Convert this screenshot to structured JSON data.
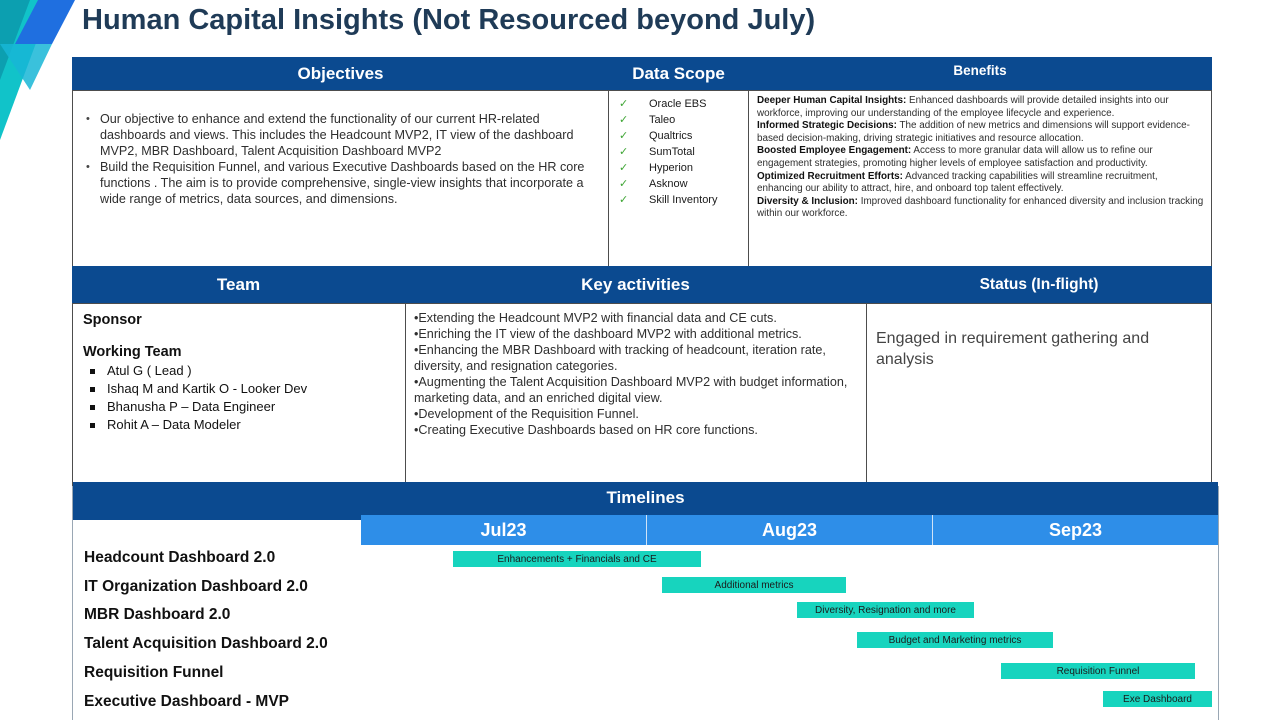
{
  "title": "Human Capital Insights (Not Resourced beyond July)",
  "objectives": {
    "header": "Objectives",
    "items": [
      "Our objective to enhance and extend the functionality of our current HR-related dashboards and views. This includes the Headcount MVP2, IT view of the dashboard MVP2, MBR Dashboard, Talent Acquisition Dashboard MVP2",
      "Build the Requisition Funnel, and various Executive Dashboards based on the HR core functions . The aim is to provide comprehensive, single-view insights that incorporate a wide range of metrics, data sources, and dimensions."
    ]
  },
  "data_scope": {
    "header": "Data Scope",
    "items": [
      "Oracle EBS",
      "Taleo",
      "Qualtrics",
      "SumTotal",
      "Hyperion",
      "Asknow",
      "Skill Inventory"
    ]
  },
  "benefits": {
    "header": "Benefits",
    "items": [
      {
        "title": "Deeper Human Capital Insights:",
        "text": " Enhanced dashboards will provide detailed insights into our workforce, improving our understanding of the employee lifecycle and experience."
      },
      {
        "title": "Informed Strategic Decisions:",
        "text": " The addition of new metrics and dimensions will support evidence-based decision-making, driving strategic initiatives and resource allocation."
      },
      {
        "title": "Boosted Employee Engagement:",
        "text": " Access to more granular data will allow us to refine our engagement strategies, promoting higher levels of employee satisfaction and productivity."
      },
      {
        "title": "Optimized Recruitment Efforts:",
        "text": " Advanced tracking capabilities will streamline recruitment, enhancing our ability to attract, hire, and onboard top talent effectively."
      },
      {
        "title": "Diversity & Inclusion:",
        "text": " Improved dashboard functionality for enhanced diversity and inclusion tracking within our workforce."
      }
    ]
  },
  "team": {
    "header": "Team",
    "sponsor_label": "Sponsor",
    "working_team_label": "Working Team",
    "members": [
      "Atul G ( Lead )",
      "Ishaq M and Kartik O - Looker Dev",
      "Bhanusha P – Data Engineer",
      "Rohit A – Data Modeler"
    ]
  },
  "key_activities": {
    "header": "Key activities",
    "items": [
      "•Extending the Headcount MVP2 with financial data and CE cuts.",
      "•Enriching the IT view of the dashboard MVP2 with additional metrics.",
      "•Enhancing the MBR Dashboard with tracking of headcount, iteration rate, diversity, and resignation categories.",
      "•Augmenting the Talent Acquisition Dashboard MVP2 with budget information, marketing data, and an enriched  digital view.",
      "•Development of the Requisition Funnel.",
      "•Creating Executive Dashboards based on HR core functions."
    ]
  },
  "status": {
    "header": "Status (In-flight)",
    "text": "Engaged in requirement gathering and analysis"
  },
  "timelines": {
    "header": "Timelines",
    "months": [
      "Jul23",
      "Aug23",
      "Sep23"
    ],
    "rows": [
      {
        "label": "Headcount Dashboard 2.0",
        "bar": "Enhancements + Financials and CE"
      },
      {
        "label": "IT Organization Dashboard 2.0",
        "bar": "Additional metrics"
      },
      {
        "label": "MBR Dashboard 2.0",
        "bar": "Diversity, Resignation and more"
      },
      {
        "label": "Talent Acquisition Dashboard 2.0",
        "bar": "Budget and Marketing metrics"
      },
      {
        "label": "Requisition Funnel",
        "bar": "Requisition Funnel"
      },
      {
        "label": "Executive Dashboard - MVP",
        "bar": "Exe Dashboard"
      }
    ]
  },
  "colors": {
    "header_blue": "#0b4a90",
    "month_blue": "#2e8ee8",
    "bar_teal": "#17d4be",
    "title_navy": "#1f3b57",
    "check_green": "#3fa535"
  }
}
